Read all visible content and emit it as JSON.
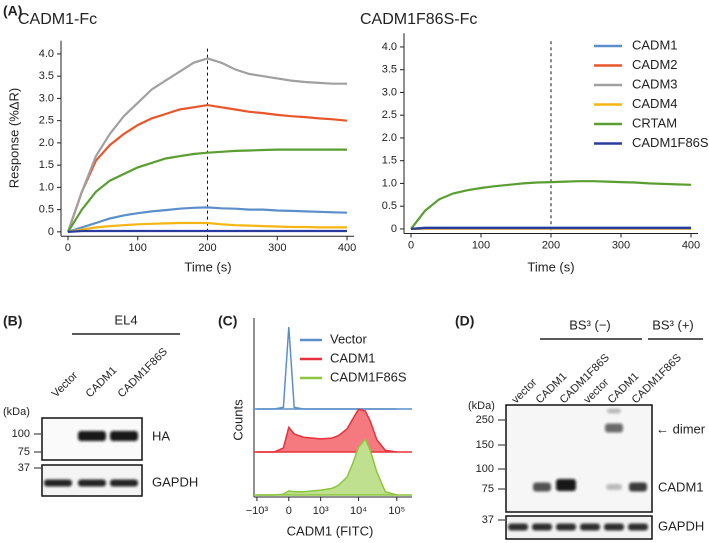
{
  "panel_labels": [
    "(A)",
    "(B)",
    "(C)",
    "(D)"
  ],
  "chart_data": [
    {
      "type": "line",
      "title": "CADM1-Fc",
      "xlabel": "Time (s)",
      "ylabel": "Response (%ΔR)",
      "x": [
        0,
        20,
        40,
        60,
        80,
        100,
        120,
        140,
        160,
        180,
        200,
        220,
        240,
        260,
        280,
        300,
        320,
        340,
        360,
        380,
        400
      ],
      "xlim": [
        -10,
        410
      ],
      "xticks": [
        0,
        100,
        200,
        300,
        400
      ],
      "ylim": [
        -0.1,
        4.3
      ],
      "yticks": [
        0,
        0.5,
        {
          "value": 1,
          "label": "1.0"
        },
        1.5,
        {
          "value": 2,
          "label": "2.0"
        },
        2.5,
        {
          "value": 3,
          "label": "3.0"
        },
        3.5,
        {
          "value": 4,
          "label": "4.0"
        }
      ],
      "vline": 200,
      "series": [
        {
          "name": "CADM1",
          "color": "#5b8fc9",
          "values": [
            0,
            0.1,
            0.2,
            0.3,
            0.37,
            0.42,
            0.46,
            0.49,
            0.52,
            0.54,
            0.55,
            0.53,
            0.52,
            0.5,
            0.5,
            0.48,
            0.47,
            0.46,
            0.45,
            0.44,
            0.43
          ]
        },
        {
          "name": "CADM2",
          "color": "#e8562a",
          "values": [
            0,
            0.9,
            1.6,
            1.95,
            2.2,
            2.4,
            2.55,
            2.65,
            2.75,
            2.8,
            2.85,
            2.8,
            2.75,
            2.7,
            2.67,
            2.63,
            2.6,
            2.58,
            2.55,
            2.53,
            2.5
          ]
        },
        {
          "name": "CADM3",
          "color": "#a0a0a0",
          "values": [
            0,
            0.9,
            1.7,
            2.2,
            2.6,
            2.9,
            3.2,
            3.4,
            3.6,
            3.8,
            3.9,
            3.8,
            3.65,
            3.55,
            3.5,
            3.45,
            3.4,
            3.37,
            3.35,
            3.33,
            3.33
          ]
        },
        {
          "name": "CADM4",
          "color": "#f5b512",
          "values": [
            0,
            0.05,
            0.1,
            0.13,
            0.15,
            0.17,
            0.18,
            0.19,
            0.2,
            0.2,
            0.2,
            0.17,
            0.15,
            0.14,
            0.13,
            0.12,
            0.11,
            0.11,
            0.1,
            0.1,
            0.1
          ]
        },
        {
          "name": "CRTAM",
          "color": "#5a9e32",
          "values": [
            0,
            0.5,
            0.9,
            1.15,
            1.3,
            1.45,
            1.55,
            1.65,
            1.7,
            1.75,
            1.78,
            1.8,
            1.82,
            1.83,
            1.84,
            1.85,
            1.85,
            1.85,
            1.85,
            1.85,
            1.85
          ]
        },
        {
          "name": "CADM1F86S",
          "color": "#2a3d9e",
          "values": [
            0,
            0.02,
            0.02,
            0.02,
            0.02,
            0.02,
            0.02,
            0.02,
            0.02,
            0.02,
            0.02,
            0.02,
            0.02,
            0.02,
            0.02,
            0.02,
            0.02,
            0.02,
            0.02,
            0.02,
            0.02
          ]
        }
      ]
    },
    {
      "type": "line",
      "title": "CADM1F86S-Fc",
      "xlabel": "Time (s)",
      "legend": "upper right",
      "x": [
        0,
        20,
        40,
        60,
        80,
        100,
        120,
        140,
        160,
        180,
        200,
        220,
        240,
        260,
        280,
        300,
        320,
        340,
        360,
        380,
        400
      ],
      "xlim": [
        -10,
        410
      ],
      "xticks": [
        0,
        100,
        200,
        300,
        400
      ],
      "ylim": [
        -0.1,
        4.3
      ],
      "yticks": [
        0,
        0.5,
        {
          "value": 1,
          "label": "1.0"
        },
        1.5,
        {
          "value": 2,
          "label": "2.0"
        },
        2.5,
        {
          "value": 3,
          "label": "3.0"
        },
        3.5,
        {
          "value": 4,
          "label": "4.0"
        }
      ],
      "vline": 200,
      "series": [
        {
          "name": "CADM1",
          "color": "#5b8fc9",
          "values": [
            0,
            0.03,
            0.03,
            0.03,
            0.03,
            0.03,
            0.03,
            0.03,
            0.03,
            0.03,
            0.03,
            0.03,
            0.03,
            0.03,
            0.03,
            0.03,
            0.03,
            0.03,
            0.03,
            0.03,
            0.03
          ]
        },
        {
          "name": "CADM2",
          "color": "#e8562a",
          "values": [
            0,
            0.01,
            0.01,
            0.01,
            0.01,
            0.01,
            0.01,
            0.01,
            0.01,
            0.01,
            0.01,
            0.01,
            0.01,
            0.01,
            0.01,
            0.01,
            0.01,
            0.01,
            0.01,
            0.01,
            0.01
          ]
        },
        {
          "name": "CADM3",
          "color": "#a0a0a0",
          "values": [
            0,
            0.01,
            0.01,
            0.01,
            0.01,
            0.01,
            0.01,
            0.01,
            0.01,
            0.01,
            0.01,
            0.01,
            0.01,
            0.01,
            0.01,
            0.01,
            0.01,
            0.01,
            0.01,
            0.01,
            0.01
          ]
        },
        {
          "name": "CADM4",
          "color": "#f5b512",
          "values": [
            0,
            0.01,
            0.01,
            0.01,
            0.01,
            0.01,
            0.01,
            0.01,
            0.01,
            0.01,
            0.01,
            0.01,
            0.01,
            0.01,
            0.01,
            0.01,
            0.01,
            0.01,
            0.01,
            0.01,
            0.01
          ]
        },
        {
          "name": "CRTAM",
          "color": "#5a9e32",
          "values": [
            0,
            0.4,
            0.65,
            0.78,
            0.85,
            0.9,
            0.94,
            0.97,
            1.0,
            1.02,
            1.03,
            1.04,
            1.05,
            1.05,
            1.04,
            1.03,
            1.02,
            1.0,
            0.99,
            0.98,
            0.97
          ]
        },
        {
          "name": "CADM1F86S",
          "color": "#2a3d9e",
          "values": [
            0,
            0.02,
            0.02,
            0.02,
            0.02,
            0.02,
            0.02,
            0.02,
            0.02,
            0.02,
            0.02,
            0.02,
            0.02,
            0.02,
            0.02,
            0.02,
            0.02,
            0.02,
            0.02,
            0.02,
            0.02
          ]
        }
      ]
    },
    {
      "type": "area",
      "xlabel": "CADM1 (FITC)",
      "ylabel": "Counts",
      "xscale": "logicle",
      "legend": "upper right",
      "x": [
        -1000,
        -300,
        -100,
        0,
        100,
        300,
        1000,
        2000,
        3000,
        5000,
        7000,
        10000,
        15000,
        20000,
        30000,
        50000,
        100000
      ],
      "xlim": [
        -1200,
        250000
      ],
      "xticks": [
        {
          "value": -1000,
          "label": "−10³"
        },
        0,
        {
          "value": 1000,
          "label": "10³"
        },
        {
          "value": 10000,
          "label": "10⁴"
        },
        {
          "value": 100000,
          "label": "10⁵"
        }
      ],
      "series": [
        {
          "name": "Vector",
          "color": "#5b8fc9",
          "values": [
            0,
            0,
            2,
            100,
            2,
            0,
            0,
            0,
            0,
            0,
            0,
            0,
            0,
            0,
            0,
            0,
            0
          ]
        },
        {
          "name": "CADM1",
          "color": "#e8303a",
          "fill": "#f47a80",
          "values": [
            0,
            0,
            5,
            30,
            22,
            18,
            16,
            17,
            20,
            28,
            40,
            52,
            50,
            38,
            15,
            2,
            0
          ]
        },
        {
          "name": "CADM1F86S",
          "color": "#8cc63f",
          "fill": "#bfe08f",
          "values": [
            0,
            0,
            1,
            5,
            4,
            4,
            6,
            8,
            12,
            22,
            38,
            58,
            68,
            55,
            28,
            4,
            0
          ]
        }
      ]
    }
  ],
  "blot_b": {
    "group": "EL4",
    "lanes": [
      "Vector",
      "CADM1",
      "CADM1F86S"
    ],
    "unit": "(kDa)",
    "markers_top": [
      100,
      75
    ],
    "markers_bottom": [
      37
    ],
    "labels": [
      "HA",
      "GAPDH"
    ]
  },
  "blot_d": {
    "groups": [
      "BS³ (−)",
      "BS³ (+)"
    ],
    "lanes": [
      "vector",
      "CADM1",
      "CADM1F86S",
      "vector",
      "CADM1",
      "CADM1F86S"
    ],
    "unit": "(kDa)",
    "markers_top": [
      250,
      150,
      100,
      75
    ],
    "markers_bottom": [
      37
    ],
    "annotations": [
      "← dimer",
      "CADM1"
    ],
    "bottom_label": "GAPDH"
  }
}
